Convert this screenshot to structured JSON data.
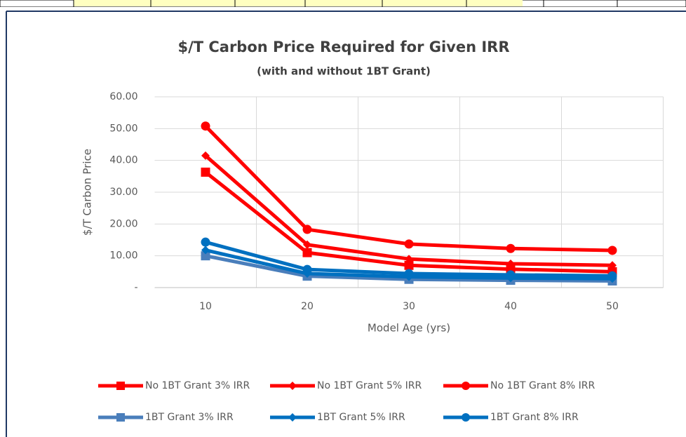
{
  "chart_data": {
    "type": "line",
    "title": "$/T Carbon Price Required for Given IRR",
    "subtitle": "(with and without 1BT Grant)",
    "x_label": "Model Age (yrs)",
    "y_label": "$/T Carbon Price",
    "categories": [
      "10",
      "20",
      "30",
      "40",
      "50"
    ],
    "ylim": [
      0,
      60
    ],
    "yticks": [
      {
        "value": 0,
        "label": "-"
      },
      {
        "value": 10,
        "label": "10.00"
      },
      {
        "value": 20,
        "label": "20.00"
      },
      {
        "value": 30,
        "label": "30.00"
      },
      {
        "value": 40,
        "label": "40.00"
      },
      {
        "value": 50,
        "label": "50.00"
      },
      {
        "value": 60,
        "label": "60.00"
      }
    ],
    "grid": true,
    "legend": "bottom",
    "series": [
      {
        "name": "No 1BT Grant 3% IRR",
        "color": "#ff0000",
        "marker": "square",
        "values": [
          36.3,
          11.0,
          7.0,
          5.8,
          5.0
        ]
      },
      {
        "name": "No 1BT Grant 5% IRR",
        "color": "#ff0000",
        "marker": "diamond",
        "values": [
          41.5,
          13.5,
          9.0,
          7.5,
          7.0
        ]
      },
      {
        "name": "No 1BT Grant 8% IRR",
        "color": "#ff0000",
        "marker": "circle",
        "values": [
          50.8,
          18.3,
          13.7,
          12.3,
          11.7
        ]
      },
      {
        "name": "1BT Grant 3% IRR",
        "color": "#4a7ebb",
        "marker": "square",
        "values": [
          10.0,
          3.6,
          2.6,
          2.3,
          2.1
        ]
      },
      {
        "name": "1BT Grant 5% IRR",
        "color": "#0070c0",
        "marker": "diamond",
        "values": [
          11.8,
          4.4,
          3.4,
          3.0,
          2.8
        ]
      },
      {
        "name": "1BT Grant 8% IRR",
        "color": "#0070c0",
        "marker": "circle",
        "values": [
          14.3,
          5.7,
          4.4,
          4.0,
          3.7
        ]
      }
    ]
  }
}
